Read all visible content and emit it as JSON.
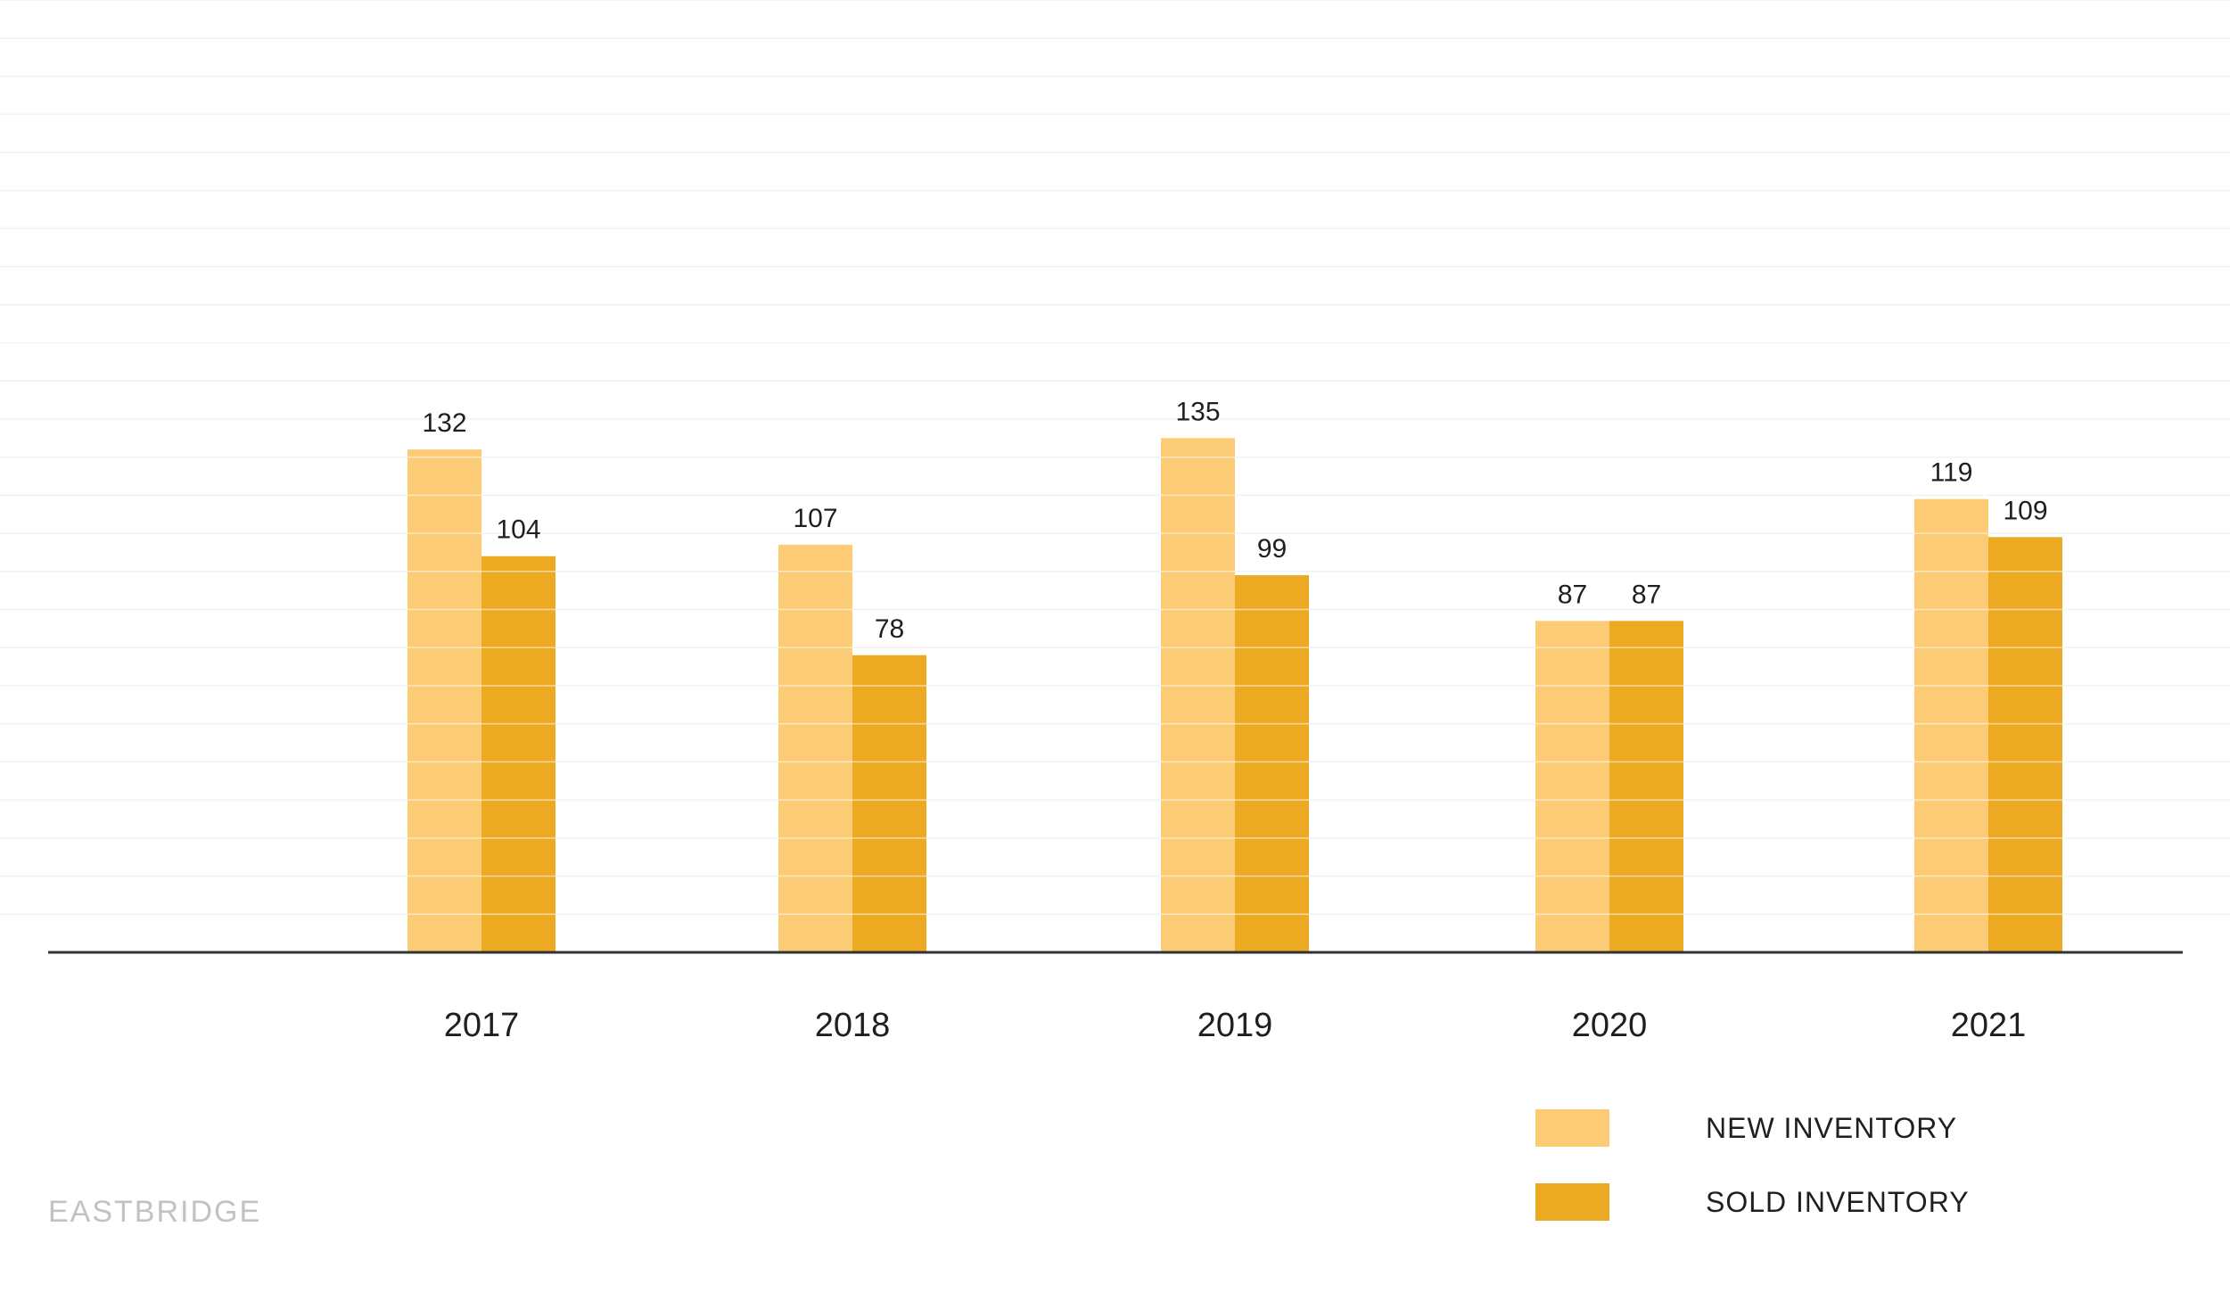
{
  "chart_data": {
    "type": "bar",
    "categories": [
      "2017",
      "2018",
      "2019",
      "2020",
      "2021"
    ],
    "series": [
      {
        "name": "NEW INVENTORY",
        "color": "#fccb76",
        "values": [
          132,
          107,
          135,
          87,
          119
        ]
      },
      {
        "name": "SOLD INVENTORY",
        "color": "#ebaa22",
        "values": [
          104,
          78,
          99,
          87,
          109
        ]
      }
    ],
    "ylim": [
      0,
      250
    ],
    "grid": true,
    "legend_position": "bottom-right",
    "data_labels": true
  },
  "branding": {
    "logo_text": "EASTBRIDGE"
  },
  "colors": {
    "gridline": "#f2f2f2",
    "axis": "#333333"
  }
}
